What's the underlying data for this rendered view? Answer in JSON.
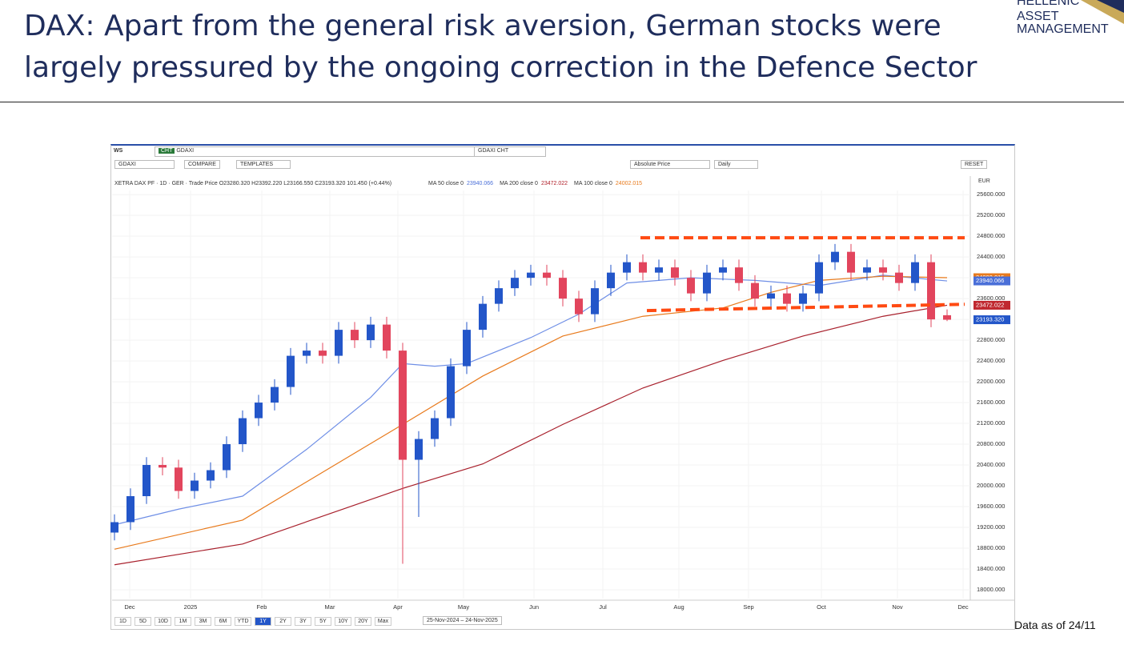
{
  "header": {
    "title_lines": [
      "DAX: Apart from the general risk aversion, German stocks were",
      "largely pressured by the ongoing correction in the Defence Sector"
    ],
    "logo": [
      "HELLENIC",
      "ASSET",
      "MANAGEMENT"
    ]
  },
  "toolbar": {
    "workspace": "WS",
    "tab_tag": "CHT",
    "search": "GDAXI",
    "tab": "GDAXI CHT",
    "symbol": "GDAXI",
    "compare": "COMPARE",
    "templates": "TEMPLATES",
    "price_mode": "Absolute Price",
    "period": "Daily",
    "reset": "RESET",
    "currency": "EUR",
    "info": "XETRA DAX PF · 1D · GER · Trade Price  O23280.320  H23392.220  L23166.550  C23193.320  101.450 (+0.44%)",
    "ma_legend": [
      {
        "label": "MA 50 close 0",
        "value": "23940.066",
        "color": "#4a6fd8"
      },
      {
        "label": "MA 200 close 0",
        "value": "23472.022",
        "color": "#b0202a"
      },
      {
        "label": "MA 100 close 0",
        "value": "24002.015",
        "color": "#e87a1c"
      }
    ],
    "ranges": [
      "1D",
      "5D",
      "10D",
      "1M",
      "3M",
      "6M",
      "YTD",
      "1Y",
      "2Y",
      "3Y",
      "5Y",
      "10Y",
      "20Y",
      "Max"
    ],
    "active_range": "1Y",
    "date_range": "25-Nov-2024  –  24-Nov-2025"
  },
  "chart_data": {
    "type": "candlestick",
    "x": [
      0,
      1,
      2,
      3,
      4,
      5,
      6,
      7,
      8,
      9,
      10,
      11,
      12,
      13,
      14,
      15,
      16,
      17,
      18,
      19,
      20,
      21,
      22,
      23,
      24,
      25,
      26,
      27,
      28,
      29,
      30,
      31,
      32,
      33,
      34,
      35,
      36,
      37,
      38,
      39,
      40,
      41,
      42,
      43,
      44,
      45,
      46,
      47,
      48,
      49,
      50,
      51,
      52
    ],
    "open": [
      19100,
      19300,
      19800,
      20400,
      20350,
      19900,
      20100,
      20300,
      20800,
      21300,
      21600,
      21900,
      22500,
      22600,
      22500,
      23000,
      22800,
      23100,
      22600,
      20500,
      20900,
      21300,
      22300,
      23000,
      23500,
      23800,
      24000,
      24100,
      24000,
      23600,
      23300,
      23800,
      24100,
      24300,
      24100,
      24200,
      24000,
      23700,
      24100,
      24200,
      23900,
      23600,
      23700,
      23500,
      23700,
      24300,
      24500,
      24100,
      24200,
      24100,
      23900,
      24300,
      23280.32
    ],
    "high": [
      19450,
      19950,
      20550,
      20550,
      20500,
      20250,
      20450,
      20950,
      21450,
      21750,
      22050,
      22650,
      22750,
      22750,
      23150,
      23150,
      23250,
      23250,
      22750,
      21050,
      21450,
      22450,
      23150,
      23650,
      23950,
      24150,
      24250,
      24250,
      24150,
      23750,
      23950,
      24250,
      24450,
      24450,
      24350,
      24350,
      24150,
      24250,
      24350,
      24350,
      24050,
      23850,
      23850,
      23850,
      24450,
      24650,
      24650,
      24350,
      24350,
      24250,
      24450,
      24450,
      23392.22
    ],
    "low": [
      18950,
      19150,
      19650,
      20200,
      19750,
      19750,
      19950,
      20150,
      20650,
      21150,
      21450,
      21750,
      22350,
      22350,
      22350,
      22650,
      22650,
      22450,
      18500,
      19400,
      20750,
      21150,
      22150,
      22850,
      23350,
      23650,
      23850,
      23850,
      23450,
      23150,
      23150,
      23650,
      23950,
      23950,
      23950,
      23850,
      23550,
      23550,
      23950,
      23750,
      23450,
      23450,
      23350,
      23350,
      23550,
      24150,
      23950,
      23950,
      23950,
      23750,
      23750,
      23050,
      23166.55
    ],
    "close": [
      19300,
      19800,
      20400,
      20350,
      19900,
      20100,
      20300,
      20800,
      21300,
      21600,
      21900,
      22500,
      22600,
      22500,
      23000,
      22800,
      23100,
      22600,
      20500,
      20900,
      21300,
      22300,
      23000,
      23500,
      23800,
      24000,
      24100,
      24000,
      23600,
      23300,
      23800,
      24100,
      24300,
      24100,
      24200,
      24000,
      23700,
      24100,
      24200,
      23900,
      23600,
      23700,
      23500,
      23700,
      24300,
      24500,
      24100,
      24200,
      24100,
      23900,
      24300,
      23200,
      23193.32
    ],
    "up_color": "#2356c9",
    "down_color": "#e2455d",
    "lines": [
      {
        "color": "#6f8fe6",
        "x": [
          0,
          4,
          8,
          12,
          16,
          18,
          20,
          22,
          26,
          29,
          32,
          36,
          40,
          44,
          48,
          52
        ],
        "values": [
          19250,
          19550,
          19800,
          20700,
          21700,
          22350,
          22300,
          22350,
          22850,
          23300,
          23900,
          24000,
          23950,
          23850,
          24050,
          23940.066
        ]
      },
      {
        "color": "#e87a1c",
        "x": [
          0,
          8,
          13,
          18,
          23,
          28,
          33,
          38,
          41,
          44,
          48,
          52
        ],
        "values": [
          18780,
          19340,
          20260,
          21180,
          22110,
          22880,
          23260,
          23420,
          23720,
          23950,
          24030,
          24002.015
        ]
      },
      {
        "color": "#a8202c",
        "x": [
          0,
          8,
          18,
          23,
          28,
          33,
          38,
          43,
          48,
          52
        ],
        "values": [
          18480,
          18880,
          19950,
          20420,
          21180,
          21880,
          22410,
          22880,
          23260,
          23472.022
        ]
      }
    ],
    "levels": [
      {
        "color": "#ff4a12",
        "x": [
          32.85,
          53.1
        ],
        "values": [
          24770,
          24770
        ]
      },
      {
        "color": "#ff4a12",
        "x": [
          33.25,
          53.1
        ],
        "values": [
          23370,
          23490
        ]
      }
    ],
    "price_tags": [
      {
        "value": 24002.015,
        "label": "24002.015",
        "color": "#e87a1c"
      },
      {
        "value": 23940.066,
        "label": "23940.066",
        "color": "#4a6fd8"
      },
      {
        "value": 23472.022,
        "label": "23472.022",
        "color": "#c0282f"
      },
      {
        "value": 23193.32,
        "label": "23193.320",
        "color": "#2356c9"
      }
    ],
    "xlim": [
      -0.15,
      53.45
    ],
    "ylim": [
      17830,
      25680
    ],
    "xticks": [
      {
        "value": 0.95,
        "label": "Dec"
      },
      {
        "value": 4.75,
        "label": "2025"
      },
      {
        "value": 9.2,
        "label": "Feb"
      },
      {
        "value": 13.45,
        "label": "Mar"
      },
      {
        "value": 17.7,
        "label": "Apr"
      },
      {
        "value": 21.8,
        "label": "May"
      },
      {
        "value": 26.2,
        "label": "Jun"
      },
      {
        "value": 30.5,
        "label": "Jul"
      },
      {
        "value": 35.25,
        "label": "Aug"
      },
      {
        "value": 39.6,
        "label": "Sep"
      },
      {
        "value": 44.15,
        "label": "Oct"
      },
      {
        "value": 48.9,
        "label": "Nov"
      },
      {
        "value": 53,
        "label": "Dec"
      }
    ],
    "yticks": [
      {
        "value": 18000,
        "label": "18000.000"
      },
      {
        "value": 18400,
        "label": "18400.000"
      },
      {
        "value": 18800,
        "label": "18800.000"
      },
      {
        "value": 19200,
        "label": "19200.000"
      },
      {
        "value": 19600,
        "label": "19600.000"
      },
      {
        "value": 20000,
        "label": "20000.000"
      },
      {
        "value": 20400,
        "label": "20400.000"
      },
      {
        "value": 20800,
        "label": "20800.000"
      },
      {
        "value": 21200,
        "label": "21200.000"
      },
      {
        "value": 21600,
        "label": "21600.000"
      },
      {
        "value": 22000,
        "label": "22000.000"
      },
      {
        "value": 22400,
        "label": "22400.000"
      },
      {
        "value": 22800,
        "label": "22800.000"
      },
      {
        "value": 23200,
        "label": "23200.000"
      },
      {
        "value": 23600,
        "label": "23600.000"
      },
      {
        "value": 24000,
        "label": "24000.000"
      },
      {
        "value": 24400,
        "label": "24400.000"
      },
      {
        "value": 24800,
        "label": "24800.000"
      },
      {
        "value": 25200,
        "label": "25200.000"
      },
      {
        "value": 25600,
        "label": "25600.000"
      }
    ],
    "grid": true
  },
  "footer": "Data as of 24/11"
}
